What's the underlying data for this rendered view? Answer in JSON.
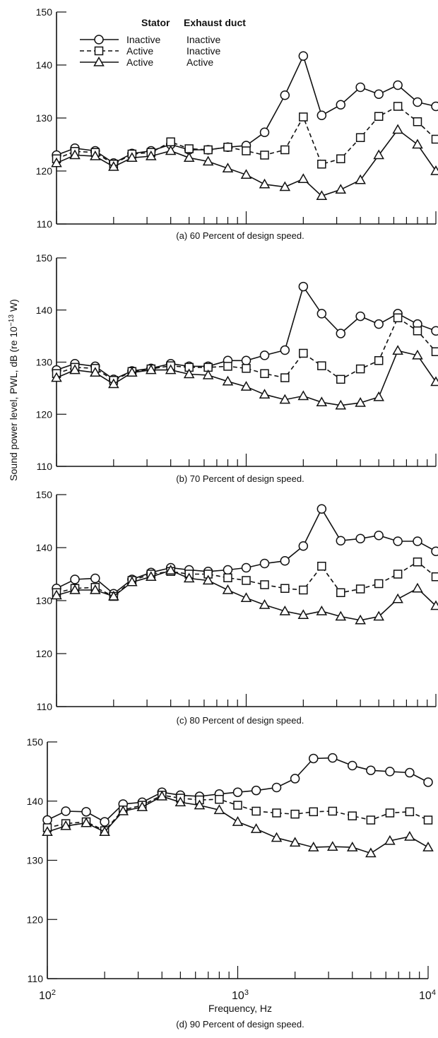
{
  "figure": {
    "ylabel": "Sound power level, PWL, dB (re 10",
    "ylabel_sup": "−13",
    "ylabel_tail": " W)",
    "xlabel": "Frequency, Hz",
    "x_tick_base": "10",
    "x_tick_exps": [
      "2",
      "3",
      "4"
    ],
    "legend": {
      "header_stator": "Stator",
      "header_exhaust": "Exhaust duct",
      "rows": [
        {
          "stator": "Inactive",
          "exhaust": "Inactive"
        },
        {
          "stator": "Active",
          "exhaust": "Inactive"
        },
        {
          "stator": "Active",
          "exhaust": "Active"
        }
      ]
    }
  },
  "chart_data": [
    {
      "type": "line",
      "caption": "(a) 60 Percent of design speed.",
      "x_scale": "log",
      "xlim": [
        100,
        10000
      ],
      "ylim": [
        110,
        150
      ],
      "yticks": [
        110,
        120,
        130,
        140,
        150
      ],
      "x": [
        100,
        125,
        160,
        200,
        250,
        315,
        400,
        500,
        630,
        800,
        1000,
        1250,
        1600,
        2000,
        2500,
        3150,
        4000,
        5000,
        6300,
        8000,
        10000
      ],
      "series": [
        {
          "marker": "circle",
          "line": "solid",
          "values": [
            123,
            124.3,
            123.8,
            121.5,
            123.3,
            123.8,
            125,
            124,
            124,
            124.5,
            124.8,
            127.3,
            134.3,
            141.7,
            130.5,
            132.5,
            135.8,
            134.5,
            136.2,
            133,
            132.2
          ]
        },
        {
          "marker": "square",
          "line": "dashed",
          "values": [
            122.3,
            123.7,
            123.5,
            121.3,
            123.2,
            123.5,
            125.5,
            124.2,
            124,
            124.5,
            123.8,
            123,
            124,
            130.2,
            121.3,
            122.3,
            126.3,
            130.3,
            132.2,
            129.3,
            126
          ]
        },
        {
          "marker": "triangle",
          "line": "solid",
          "values": [
            121.5,
            123,
            122.8,
            120.8,
            122.5,
            122.8,
            123.8,
            122.5,
            121.8,
            120.5,
            119.3,
            117.5,
            117,
            118.5,
            115.3,
            116.5,
            118.3,
            123,
            127.8,
            125,
            120
          ]
        }
      ]
    },
    {
      "type": "line",
      "caption": "(b) 70 Percent of design speed.",
      "x_scale": "log",
      "xlim": [
        100,
        10000
      ],
      "ylim": [
        110,
        150
      ],
      "yticks": [
        110,
        120,
        130,
        140,
        150
      ],
      "x": [
        100,
        125,
        160,
        200,
        250,
        315,
        400,
        500,
        630,
        800,
        1000,
        1250,
        1600,
        2000,
        2500,
        3150,
        4000,
        5000,
        6300,
        8000,
        10000
      ],
      "series": [
        {
          "marker": "circle",
          "line": "solid",
          "values": [
            128.5,
            129.7,
            129.2,
            126.7,
            128.3,
            128.8,
            129.7,
            129.2,
            129.2,
            130.3,
            130.3,
            131.3,
            132.3,
            144.5,
            139.3,
            135.5,
            138.8,
            137.3,
            139.3,
            137.3,
            136
          ]
        },
        {
          "marker": "square",
          "line": "dashed",
          "values": [
            127.8,
            129,
            128.8,
            126.5,
            128.2,
            128.7,
            129.3,
            129,
            129,
            129.2,
            128.8,
            127.8,
            127,
            131.7,
            129.3,
            126.7,
            128.7,
            130.3,
            138.5,
            136,
            132
          ]
        },
        {
          "marker": "triangle",
          "line": "solid",
          "values": [
            127,
            128.5,
            128,
            125.8,
            128,
            128.5,
            128.5,
            127.7,
            127.5,
            126.3,
            125.3,
            123.8,
            122.8,
            123.5,
            122.3,
            121.7,
            122.2,
            123.3,
            132.2,
            131.3,
            126.2
          ]
        }
      ]
    },
    {
      "type": "line",
      "caption": "(c) 80 Percent of design speed.",
      "x_scale": "log",
      "xlim": [
        100,
        10000
      ],
      "ylim": [
        110,
        150
      ],
      "yticks": [
        110,
        120,
        130,
        140,
        150
      ],
      "x": [
        100,
        125,
        160,
        200,
        250,
        315,
        400,
        500,
        630,
        800,
        1000,
        1250,
        1600,
        2000,
        2500,
        3150,
        4000,
        5000,
        6300,
        8000,
        10000
      ],
      "series": [
        {
          "marker": "circle",
          "line": "solid",
          "values": [
            132.3,
            134,
            134.2,
            131.3,
            134,
            135.3,
            136.2,
            135.8,
            135.5,
            135.8,
            136.2,
            137,
            137.5,
            140.3,
            147.3,
            141.3,
            141.7,
            142.3,
            141.2,
            141.2,
            139.3
          ]
        },
        {
          "marker": "square",
          "line": "dashed",
          "values": [
            131.5,
            132.3,
            132.5,
            130.8,
            133.8,
            135,
            135.5,
            135,
            135,
            134.3,
            133.8,
            133,
            132.3,
            132,
            136.5,
            131.5,
            132.2,
            133.2,
            135,
            137.3,
            134.5
          ]
        },
        {
          "marker": "triangle",
          "line": "solid",
          "values": [
            131,
            132,
            132,
            130.8,
            133.5,
            134.5,
            135.7,
            134.2,
            133.8,
            132,
            130.5,
            129.2,
            128,
            127.3,
            128,
            127,
            126.3,
            127,
            130.3,
            132.3,
            129
          ]
        }
      ]
    },
    {
      "type": "line",
      "caption": "(d) 90 Percent of design speed.",
      "x_scale": "log",
      "xlim": [
        100,
        10000
      ],
      "ylim": [
        110,
        150
      ],
      "yticks": [
        110,
        120,
        130,
        140,
        150
      ],
      "x": [
        100,
        125,
        160,
        200,
        250,
        315,
        400,
        500,
        630,
        800,
        1000,
        1250,
        1600,
        2000,
        2500,
        3150,
        4000,
        5000,
        6300,
        8000,
        10000
      ],
      "series": [
        {
          "marker": "circle",
          "line": "solid",
          "values": [
            136.8,
            138.3,
            138.2,
            136.5,
            139.5,
            139.8,
            141.5,
            141,
            140.8,
            141.2,
            141.5,
            141.8,
            142.3,
            143.8,
            147.2,
            147.3,
            146,
            145.2,
            145,
            144.8,
            143.2
          ]
        },
        {
          "marker": "square",
          "line": "dashed",
          "values": [
            135.5,
            136.2,
            136.5,
            135,
            138.5,
            139.3,
            141,
            140.5,
            140.2,
            140.3,
            139.3,
            138.3,
            138,
            137.8,
            138.2,
            138.3,
            137.5,
            136.8,
            138,
            138.2,
            136.8
          ]
        },
        {
          "marker": "triangle",
          "line": "solid",
          "values": [
            134.8,
            135.8,
            136.3,
            134.8,
            138.3,
            139,
            140.8,
            139.8,
            139.3,
            138.5,
            136.5,
            135.3,
            133.8,
            133,
            132.2,
            132.3,
            132.2,
            131.2,
            133.3,
            134,
            132.2
          ]
        }
      ]
    }
  ]
}
